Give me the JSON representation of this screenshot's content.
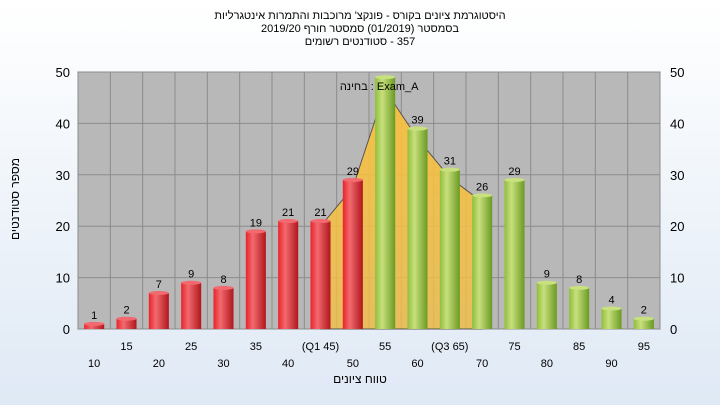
{
  "colors": {
    "plot_bg": "#b8b8b8",
    "grid": "#8c8c8c",
    "bar_red": "#e8232a",
    "bar_red_light": "#f26a6f",
    "bar_green": "#8fbe3a",
    "bar_green_light": "#c8e07d",
    "curve_fill": "#f7c040"
  },
  "chart_data": {
    "type": "bar",
    "title": "היסטוגרמת ציונים בקורס - פונקצ' מרוכבות והתמרות אינטגרליות",
    "subtitle_lines": [
      "בסמסטר  (01/2019)  סמסטר חורף  2019/20",
      "357 - סטודנטים רשומים"
    ],
    "annotation": "בחינה : Exam_A",
    "xlabel": "טווח ציונים",
    "ylabel": "מספר סטודנטים",
    "ylim": [
      0,
      50
    ],
    "yticks": [
      0,
      10,
      20,
      30,
      40,
      50
    ],
    "grid": true,
    "categories": [
      "10",
      "15",
      "20",
      "25",
      "30",
      "35",
      "40",
      "45",
      "50",
      "55",
      "60",
      "65",
      "70",
      "75",
      "80",
      "85",
      "90",
      "95"
    ],
    "category_tick_labels": [
      "10",
      "15",
      "20",
      "25",
      "30",
      "35",
      "40",
      "(Q1 45)",
      "50",
      "55",
      "60",
      "(Q3 65)",
      "70",
      "75",
      "80",
      "85",
      "90",
      "95"
    ],
    "values": [
      1,
      2,
      7,
      9,
      8,
      19,
      21,
      21,
      29,
      49,
      39,
      31,
      26,
      29,
      9,
      8,
      4,
      2
    ],
    "value_labels": [
      "1",
      "2",
      "7",
      "9",
      "8",
      "19",
      "21",
      "21",
      "29",
      "",
      "39",
      "31",
      "26",
      "29",
      "9",
      "8",
      "4",
      "2"
    ],
    "color_groups": [
      "red",
      "red",
      "red",
      "red",
      "red",
      "red",
      "red",
      "red",
      "red",
      "green",
      "green",
      "green",
      "green",
      "green",
      "green",
      "green",
      "green",
      "green"
    ]
  }
}
